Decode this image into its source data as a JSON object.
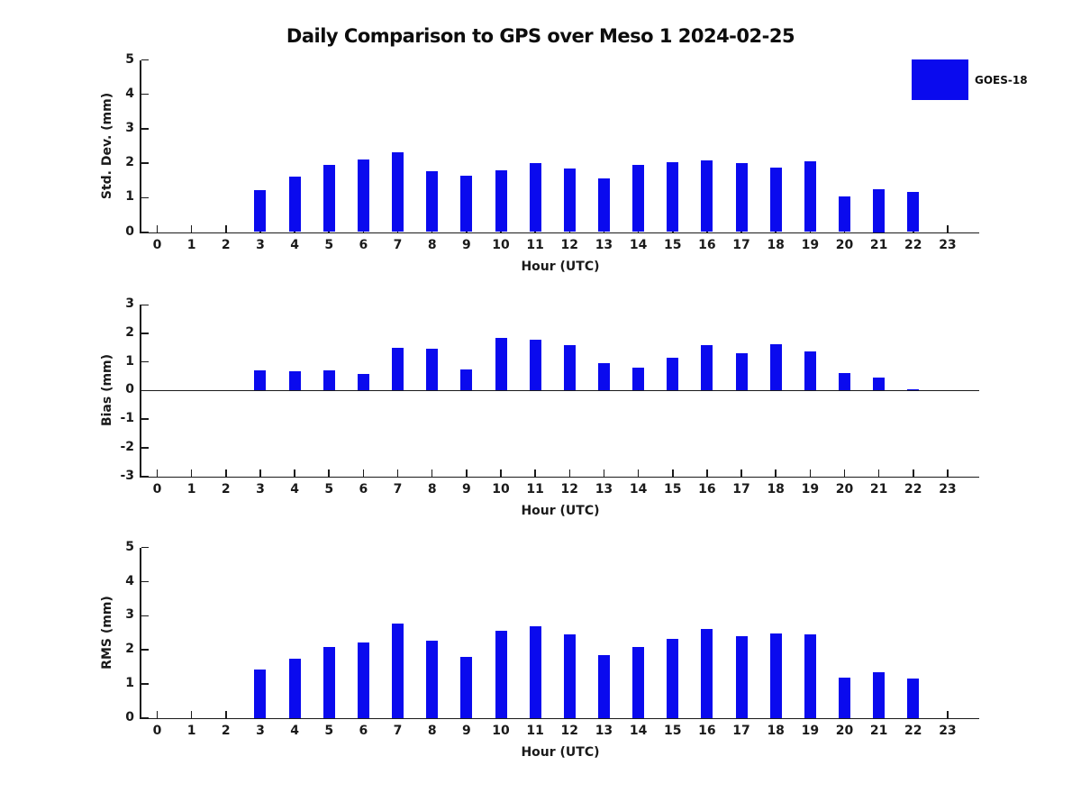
{
  "title": "Daily Comparison to GPS over Meso 1 2024-02-25",
  "colors": {
    "bar": "#0a0aee",
    "axis": "#1a1a1a",
    "background": "#ffffff"
  },
  "legend": {
    "label": "GOES-18",
    "swatch_color": "#0a0aee",
    "position": "top-right"
  },
  "chart_data": [
    {
      "type": "bar",
      "title": "",
      "ylabel": "Std. Dev. (mm)",
      "xlabel": "Hour (UTC)",
      "ylim": [
        0,
        5
      ],
      "yticks": [
        0,
        1,
        2,
        3,
        4,
        5
      ],
      "grid": false,
      "categories": [
        "0",
        "1",
        "2",
        "3",
        "4",
        "5",
        "6",
        "7",
        "8",
        "9",
        "10",
        "11",
        "12",
        "13",
        "14",
        "15",
        "16",
        "17",
        "18",
        "19",
        "20",
        "21",
        "22",
        "23"
      ],
      "series": [
        {
          "name": "GOES-18",
          "values": [
            null,
            null,
            null,
            1.22,
            1.61,
            1.95,
            2.1,
            2.32,
            1.77,
            1.64,
            1.79,
            2.0,
            1.85,
            1.56,
            1.94,
            2.02,
            2.08,
            2.0,
            1.87,
            2.05,
            1.03,
            1.25,
            1.17,
            null
          ]
        }
      ]
    },
    {
      "type": "bar",
      "title": "",
      "ylabel": "Bias (mm)",
      "xlabel": "Hour (UTC)",
      "ylim": [
        -3,
        3
      ],
      "yticks": [
        -3,
        -2,
        -1,
        0,
        1,
        2,
        3
      ],
      "grid": false,
      "zero_line": true,
      "categories": [
        "0",
        "1",
        "2",
        "3",
        "4",
        "5",
        "6",
        "7",
        "8",
        "9",
        "10",
        "11",
        "12",
        "13",
        "14",
        "15",
        "16",
        "17",
        "18",
        "19",
        "20",
        "21",
        "22",
        "23"
      ],
      "series": [
        {
          "name": "GOES-18",
          "values": [
            null,
            null,
            null,
            0.72,
            0.66,
            0.72,
            0.58,
            1.5,
            1.45,
            0.73,
            1.85,
            1.78,
            1.6,
            0.95,
            0.79,
            1.15,
            1.6,
            1.32,
            1.62,
            1.36,
            0.6,
            0.45,
            0.04,
            null
          ]
        }
      ]
    },
    {
      "type": "bar",
      "title": "",
      "ylabel": "RMS (mm)",
      "xlabel": "Hour (UTC)",
      "ylim": [
        0,
        5
      ],
      "yticks": [
        0,
        1,
        2,
        3,
        4,
        5
      ],
      "grid": false,
      "categories": [
        "0",
        "1",
        "2",
        "3",
        "4",
        "5",
        "6",
        "7",
        "8",
        "9",
        "10",
        "11",
        "12",
        "13",
        "14",
        "15",
        "16",
        "17",
        "18",
        "19",
        "20",
        "21",
        "22",
        "23"
      ],
      "series": [
        {
          "name": "GOES-18",
          "values": [
            null,
            null,
            null,
            1.43,
            1.74,
            2.08,
            2.21,
            2.76,
            2.28,
            1.79,
            2.57,
            2.7,
            2.44,
            1.84,
            2.07,
            2.31,
            2.62,
            2.41,
            2.48,
            2.46,
            1.18,
            1.34,
            1.16,
            null
          ]
        }
      ]
    }
  ]
}
